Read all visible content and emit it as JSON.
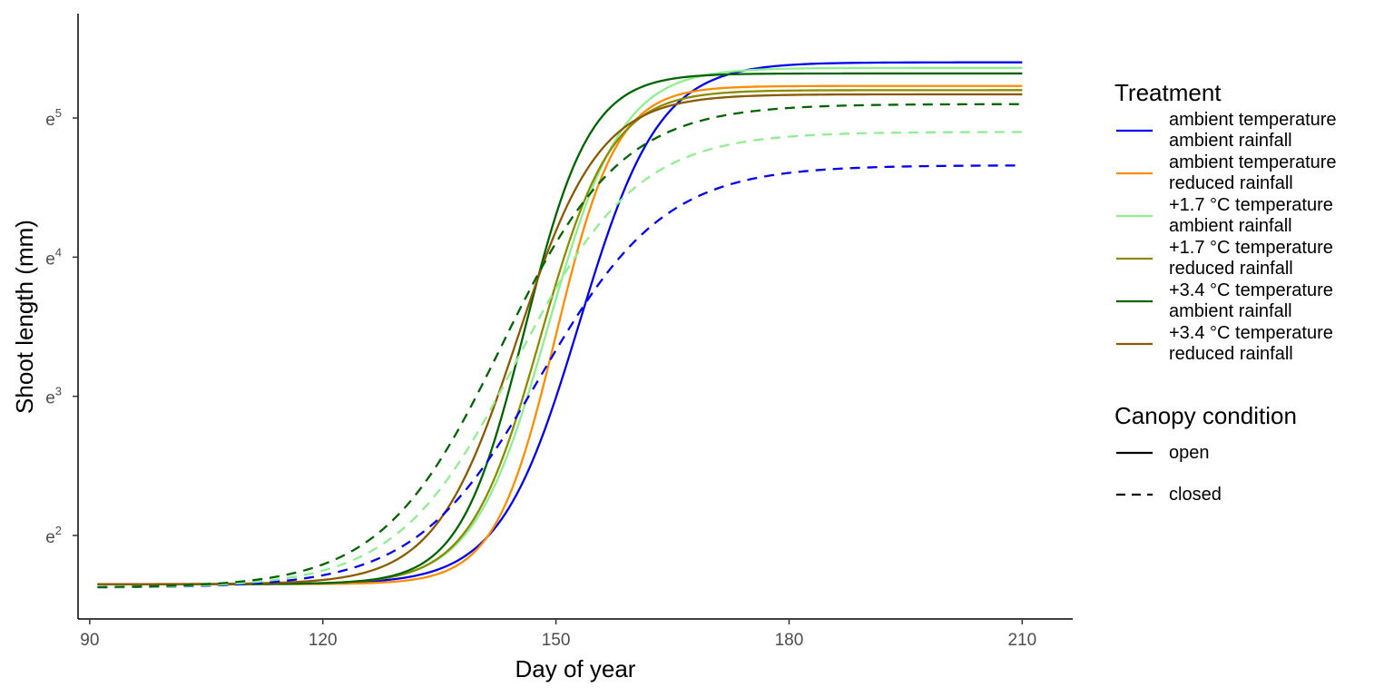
{
  "chart_data": {
    "type": "line",
    "title": "",
    "xlabel": "Day of year",
    "ylabel": "Shoot length (mm)",
    "x_scale": "linear",
    "y_scale": "log (natural)",
    "xlim": [
      88.5,
      216.5
    ],
    "ylim_ln": [
      1.4,
      5.75
    ],
    "x_ticks": [
      90,
      120,
      150,
      180,
      210
    ],
    "y_ticks": [
      {
        "base": "e",
        "exp": "2",
        "ln": 2
      },
      {
        "base": "e",
        "exp": "3",
        "ln": 3
      },
      {
        "base": "e",
        "exp": "4",
        "ln": 4
      },
      {
        "base": "e",
        "exp": "5",
        "ln": 5
      }
    ],
    "grid": false,
    "legend_position": "right",
    "x_range": [
      91,
      210
    ],
    "treatment_legend": {
      "title": "Treatment",
      "entries": [
        {
          "line1": "ambient temperature",
          "line2": "ambient rainfall",
          "color": "#0000ee"
        },
        {
          "line1": "ambient temperature",
          "line2": "reduced rainfall",
          "color": "#ff8c00"
        },
        {
          "line1": "+1.7 °C temperature",
          "line2": "ambient rainfall",
          "color": "#90ee90"
        },
        {
          "line1": "+1.7 °C temperature",
          "line2": "reduced rainfall",
          "color": "#8b8b00"
        },
        {
          "line1": "+3.4 °C temperature",
          "line2": "ambient rainfall",
          "color": "#006400"
        },
        {
          "line1": "+3.4 °C temperature",
          "line2": "reduced rainfall",
          "color": "#8b5a00"
        }
      ]
    },
    "canopy_legend": {
      "title": "Canopy condition",
      "entries": [
        {
          "label": "open",
          "dash": "solid"
        },
        {
          "label": "closed",
          "dash": "dashed"
        }
      ]
    },
    "series": [
      {
        "treatment": 0,
        "canopy": "open",
        "ln_start": 1.65,
        "ln_end": 5.4,
        "midpoint_day": 153,
        "rate": 0.195
      },
      {
        "treatment": 1,
        "canopy": "open",
        "ln_start": 1.65,
        "ln_end": 5.23,
        "midpoint_day": 150,
        "rate": 0.255
      },
      {
        "treatment": 2,
        "canopy": "open",
        "ln_start": 1.65,
        "ln_end": 5.36,
        "midpoint_day": 149,
        "rate": 0.21
      },
      {
        "treatment": 3,
        "canopy": "open",
        "ln_start": 1.65,
        "ln_end": 5.2,
        "midpoint_day": 148,
        "rate": 0.22
      },
      {
        "treatment": 4,
        "canopy": "open",
        "ln_start": 1.65,
        "ln_end": 5.32,
        "midpoint_day": 146,
        "rate": 0.24
      },
      {
        "treatment": 5,
        "canopy": "open",
        "ln_start": 1.65,
        "ln_end": 5.17,
        "midpoint_day": 145,
        "rate": 0.19
      },
      {
        "treatment": 0,
        "canopy": "closed",
        "ln_start": 1.625,
        "ln_end": 4.66,
        "midpoint_day": 148,
        "rate": 0.125
      },
      {
        "treatment": 2,
        "canopy": "closed",
        "ln_start": 1.625,
        "ln_end": 4.9,
        "midpoint_day": 145,
        "rate": 0.13
      },
      {
        "treatment": 4,
        "canopy": "closed",
        "ln_start": 1.625,
        "ln_end": 5.1,
        "midpoint_day": 143,
        "rate": 0.13
      }
    ]
  }
}
